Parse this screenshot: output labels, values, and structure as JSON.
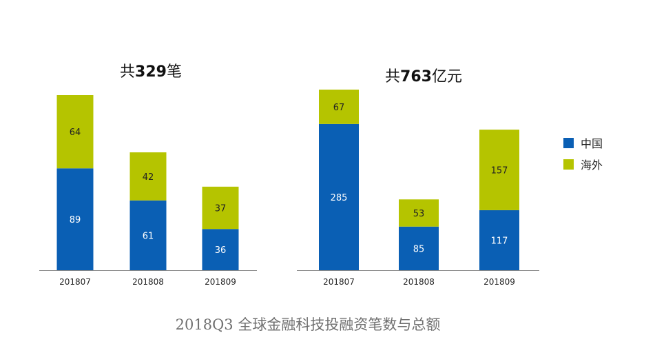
{
  "colors": {
    "china": "#0a5fb4",
    "overseas": "#b5c400",
    "axis": "#888888"
  },
  "legend": [
    {
      "label": "中国",
      "color": "#0a5fb4"
    },
    {
      "label": "海外",
      "color": "#b5c400"
    }
  ],
  "caption": "2018Q3 全球金融科技投融资笔数与总额",
  "chart_data": [
    {
      "type": "bar",
      "stacked": true,
      "title_parts": {
        "prefix": "共",
        "number": "329",
        "suffix": "笔"
      },
      "categories": [
        "201807",
        "201808",
        "201809"
      ],
      "series": [
        {
          "name": "中国",
          "values": [
            89,
            61,
            36
          ]
        },
        {
          "name": "海外",
          "values": [
            64,
            42,
            37
          ]
        }
      ],
      "ylim": [
        0,
        153
      ],
      "grid": false,
      "legend_position": "right"
    },
    {
      "type": "bar",
      "stacked": true,
      "title_parts": {
        "prefix": "共",
        "number": "763",
        "suffix": "亿元"
      },
      "categories": [
        "201807",
        "201808",
        "201809"
      ],
      "series": [
        {
          "name": "中国",
          "values": [
            285,
            85,
            117
          ]
        },
        {
          "name": "海外",
          "values": [
            67,
            53,
            157
          ]
        }
      ],
      "ylim": [
        0,
        352
      ],
      "grid": false,
      "legend_position": "right"
    }
  ]
}
